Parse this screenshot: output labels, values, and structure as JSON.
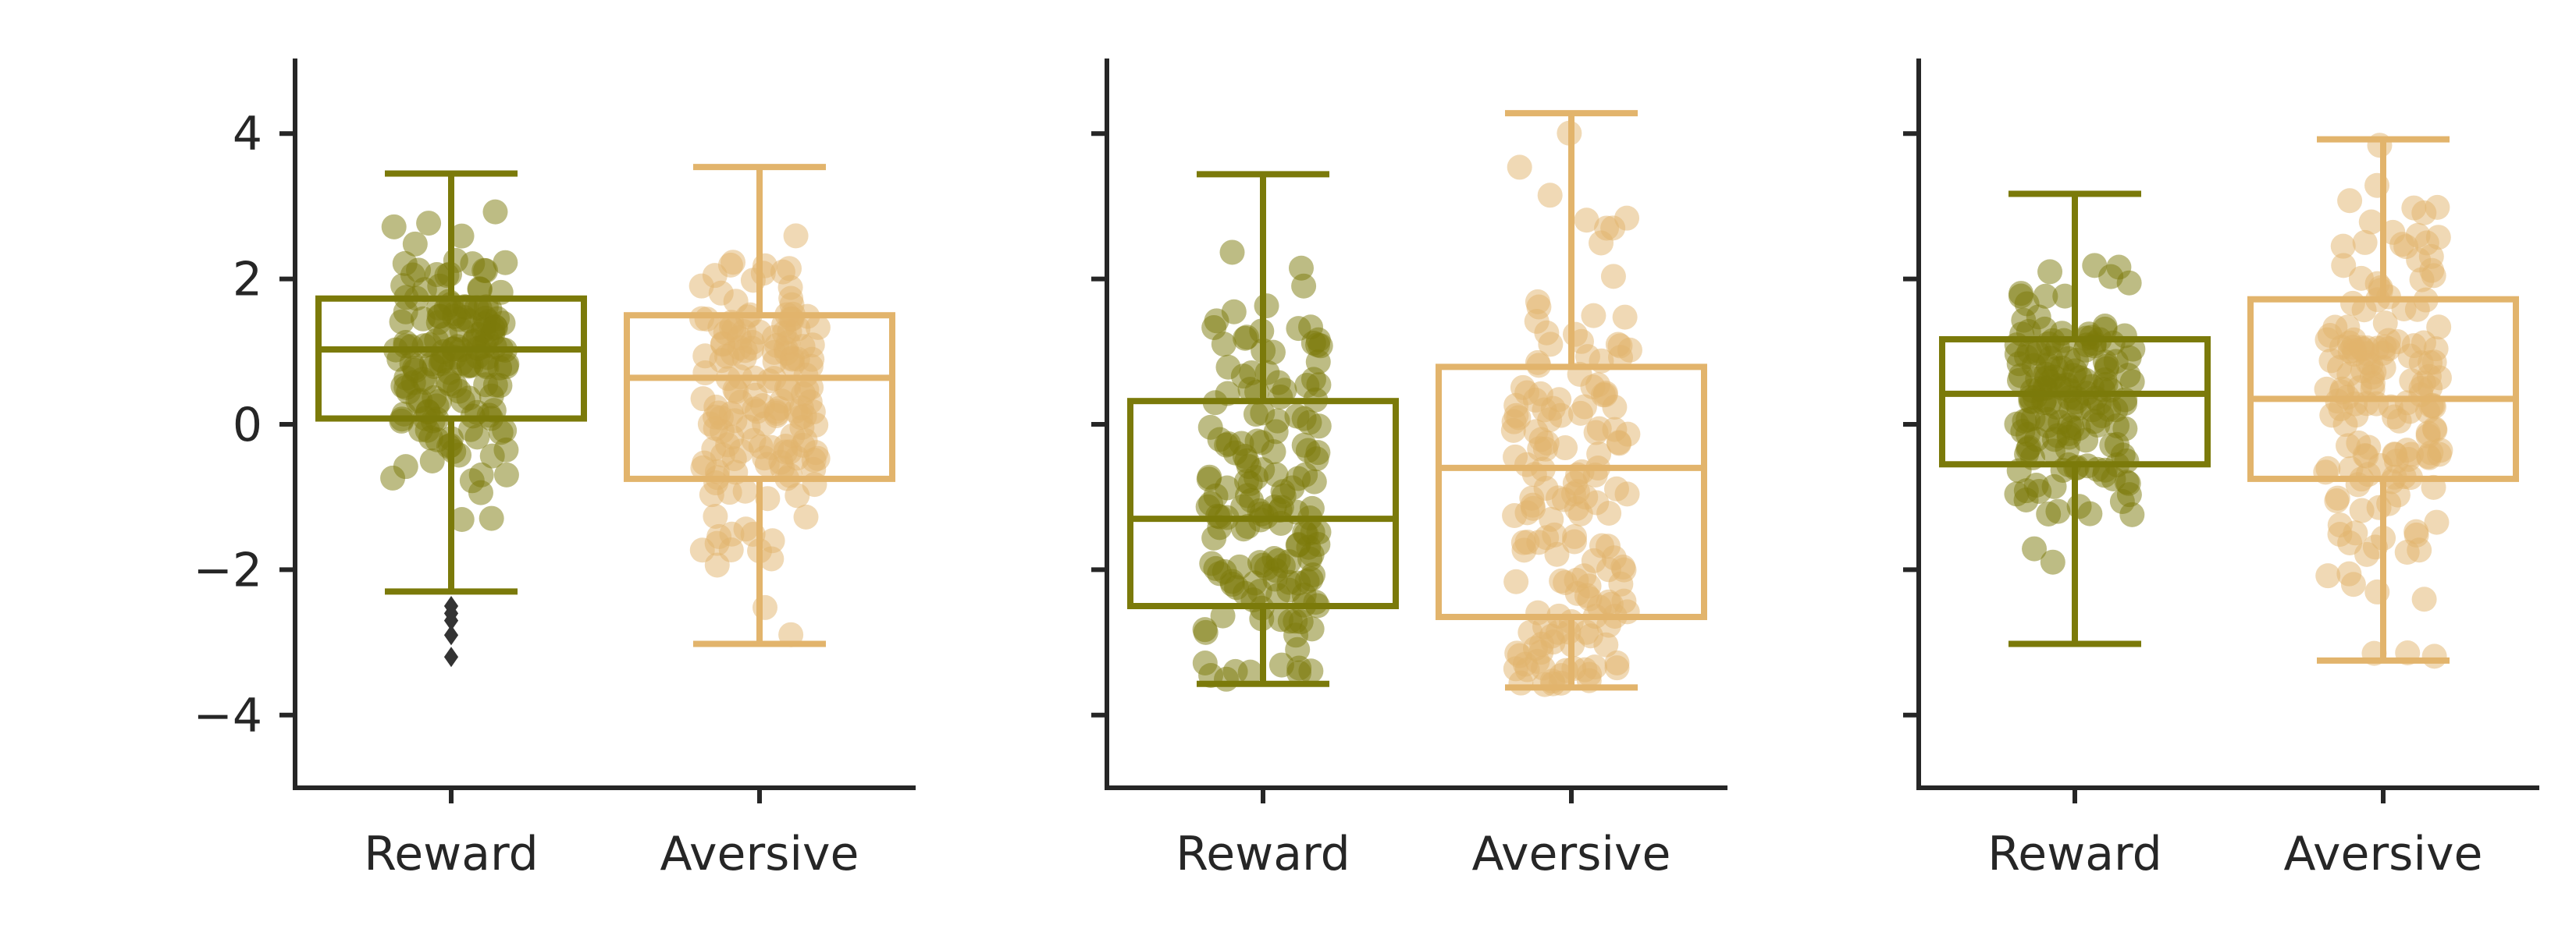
{
  "chart_data": {
    "type": "box",
    "y_ticks": [
      4,
      2,
      0,
      -2,
      -4
    ],
    "y_tick_labels": [
      "4",
      "2",
      "0",
      "−2",
      "−4"
    ],
    "ylim": [
      -5,
      5
    ],
    "categories": [
      "Reward",
      "Aversive"
    ],
    "colors": {
      "Reward": "#7b7a0a",
      "Aversive": "#e2b46c",
      "outlier": "#333333"
    },
    "panels": [
      {
        "boxes": [
          {
            "category": "Reward",
            "whisker_low": -2.3,
            "q1": 0.08,
            "median": 1.03,
            "q3": 1.73,
            "whisker_high": 3.45,
            "outliers": [
              -2.5,
              -2.6,
              -2.7,
              -2.9,
              -3.2
            ]
          },
          {
            "category": "Aversive",
            "whisker_low": -3.02,
            "q1": -0.75,
            "median": 0.64,
            "q3": 1.5,
            "whisker_high": 3.54,
            "outliers": []
          }
        ]
      },
      {
        "boxes": [
          {
            "category": "Reward",
            "whisker_low": -3.57,
            "q1": -2.5,
            "median": -1.3,
            "q3": 0.32,
            "whisker_high": 3.44,
            "outliers": []
          },
          {
            "category": "Aversive",
            "whisker_low": -3.62,
            "q1": -2.65,
            "median": -0.6,
            "q3": 0.79,
            "whisker_high": 4.28,
            "outliers": []
          }
        ]
      },
      {
        "boxes": [
          {
            "category": "Reward",
            "whisker_low": -3.02,
            "q1": -0.55,
            "median": 0.42,
            "q3": 1.17,
            "whisker_high": 3.17,
            "outliers": []
          },
          {
            "category": "Aversive",
            "whisker_low": -3.25,
            "q1": -0.75,
            "median": 0.35,
            "q3": 1.72,
            "whisker_high": 3.92,
            "outliers": []
          }
        ]
      }
    ],
    "points_per_group": 160
  }
}
